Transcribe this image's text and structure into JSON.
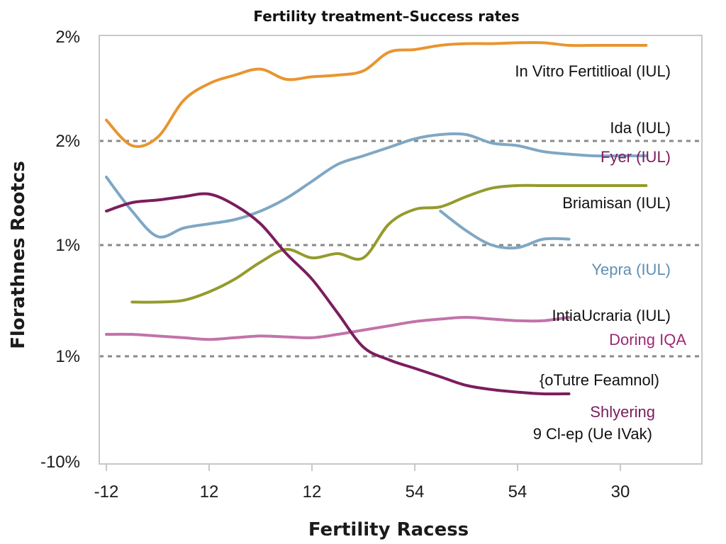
{
  "chart_data": {
    "type": "line",
    "title": "Fertility treatment–Success rates",
    "xlabel": "Fertility Racess",
    "ylabel": "Florathnes Rootcs",
    "x_ticks": [
      "-12",
      "12",
      "12",
      "54",
      "54",
      "30"
    ],
    "y_ticks": [
      "2%",
      "2%",
      "1%",
      "1%",
      "-10%"
    ],
    "x": [
      0,
      0.25,
      0.5,
      0.75,
      1,
      1.25,
      1.5,
      1.75,
      2,
      2.25,
      2.5,
      2.75,
      3,
      3.25,
      3.5,
      3.75,
      4,
      4.25,
      4.5,
      4.75,
      5,
      5.25,
      5.5
    ],
    "grid": "dashed horizontal lines at the 2nd, 3rd and 4th y ticks",
    "series": [
      {
        "name": "In Vitro Fertitlioal (IUL)",
        "color": "#e8952f",
        "values": [
          4.02,
          3.72,
          3.82,
          4.25,
          4.45,
          4.55,
          4.62,
          4.5,
          4.53,
          4.55,
          4.6,
          4.82,
          4.85,
          4.9,
          4.92,
          4.92,
          4.93,
          4.93,
          4.9,
          4.9,
          4.9,
          4.9,
          null
        ]
      },
      {
        "name": "Ida (IUL)",
        "color": "#7fa7c4",
        "values": [
          3.35,
          2.95,
          2.65,
          2.75,
          2.8,
          2.85,
          2.95,
          3.1,
          3.3,
          3.5,
          3.6,
          3.7,
          3.8,
          3.85,
          3.85,
          3.75,
          3.72,
          3.65,
          3.62,
          3.6,
          3.6,
          3.6,
          null
        ]
      },
      {
        "name": "Yepra (IUL)",
        "color": "#7fa7c4",
        "values": [
          null,
          null,
          null,
          null,
          null,
          null,
          null,
          null,
          null,
          null,
          null,
          null,
          null,
          2.95,
          2.72,
          2.55,
          2.52,
          2.62,
          2.62,
          null,
          null,
          null,
          null
        ]
      },
      {
        "name": "Briamisan (IUL)",
        "color": "#949b2c",
        "values": [
          null,
          1.88,
          1.88,
          1.9,
          2.0,
          2.15,
          2.35,
          2.5,
          2.4,
          2.45,
          2.4,
          2.8,
          2.97,
          3.0,
          3.12,
          3.22,
          3.25,
          3.25,
          3.25,
          3.25,
          3.25,
          3.25,
          null
        ]
      },
      {
        "name": "Doring IQA",
        "color": "#c273a9",
        "values": [
          1.5,
          1.5,
          1.48,
          1.46,
          1.44,
          1.46,
          1.48,
          1.47,
          1.46,
          1.5,
          1.55,
          1.6,
          1.65,
          1.68,
          1.7,
          1.68,
          1.66,
          1.66,
          1.7,
          null,
          null,
          null,
          null
        ]
      },
      {
        "name": "Shlyering",
        "color": "#7b1d5e",
        "values": [
          2.95,
          3.05,
          3.08,
          3.12,
          3.15,
          3.02,
          2.8,
          2.45,
          2.15,
          1.75,
          1.35,
          1.2,
          1.1,
          1.0,
          0.9,
          0.85,
          0.82,
          0.8,
          0.8,
          null,
          null,
          null,
          null
        ]
      }
    ],
    "annotations": [
      {
        "text": "In Vitro Fertitlioal (IUL)",
        "color": "#111111"
      },
      {
        "text": "Ida (IUL)",
        "color": "#111111"
      },
      {
        "text": "Fyer (IUL)",
        "color": "#7b1d5e"
      },
      {
        "text": "Briamisan (IUL)",
        "color": "#111111"
      },
      {
        "text": "Yepra (IUL)",
        "color": "#5f8fb4"
      },
      {
        "text": "IntiaUcraria (IUL)",
        "color": "#111111"
      },
      {
        "text": "Doring IQA",
        "color": "#9b2a72"
      },
      {
        "text": "{oTutre Feamnol)",
        "color": "#111111"
      },
      {
        "text": "Shlyering",
        "color": "#7b1d5e"
      },
      {
        "text": "9 Cl-ep (Ue IVak)",
        "color": "#111111"
      }
    ],
    "colors": {
      "grid": "#8a8a8a",
      "axis": "#c8c8c8"
    }
  }
}
